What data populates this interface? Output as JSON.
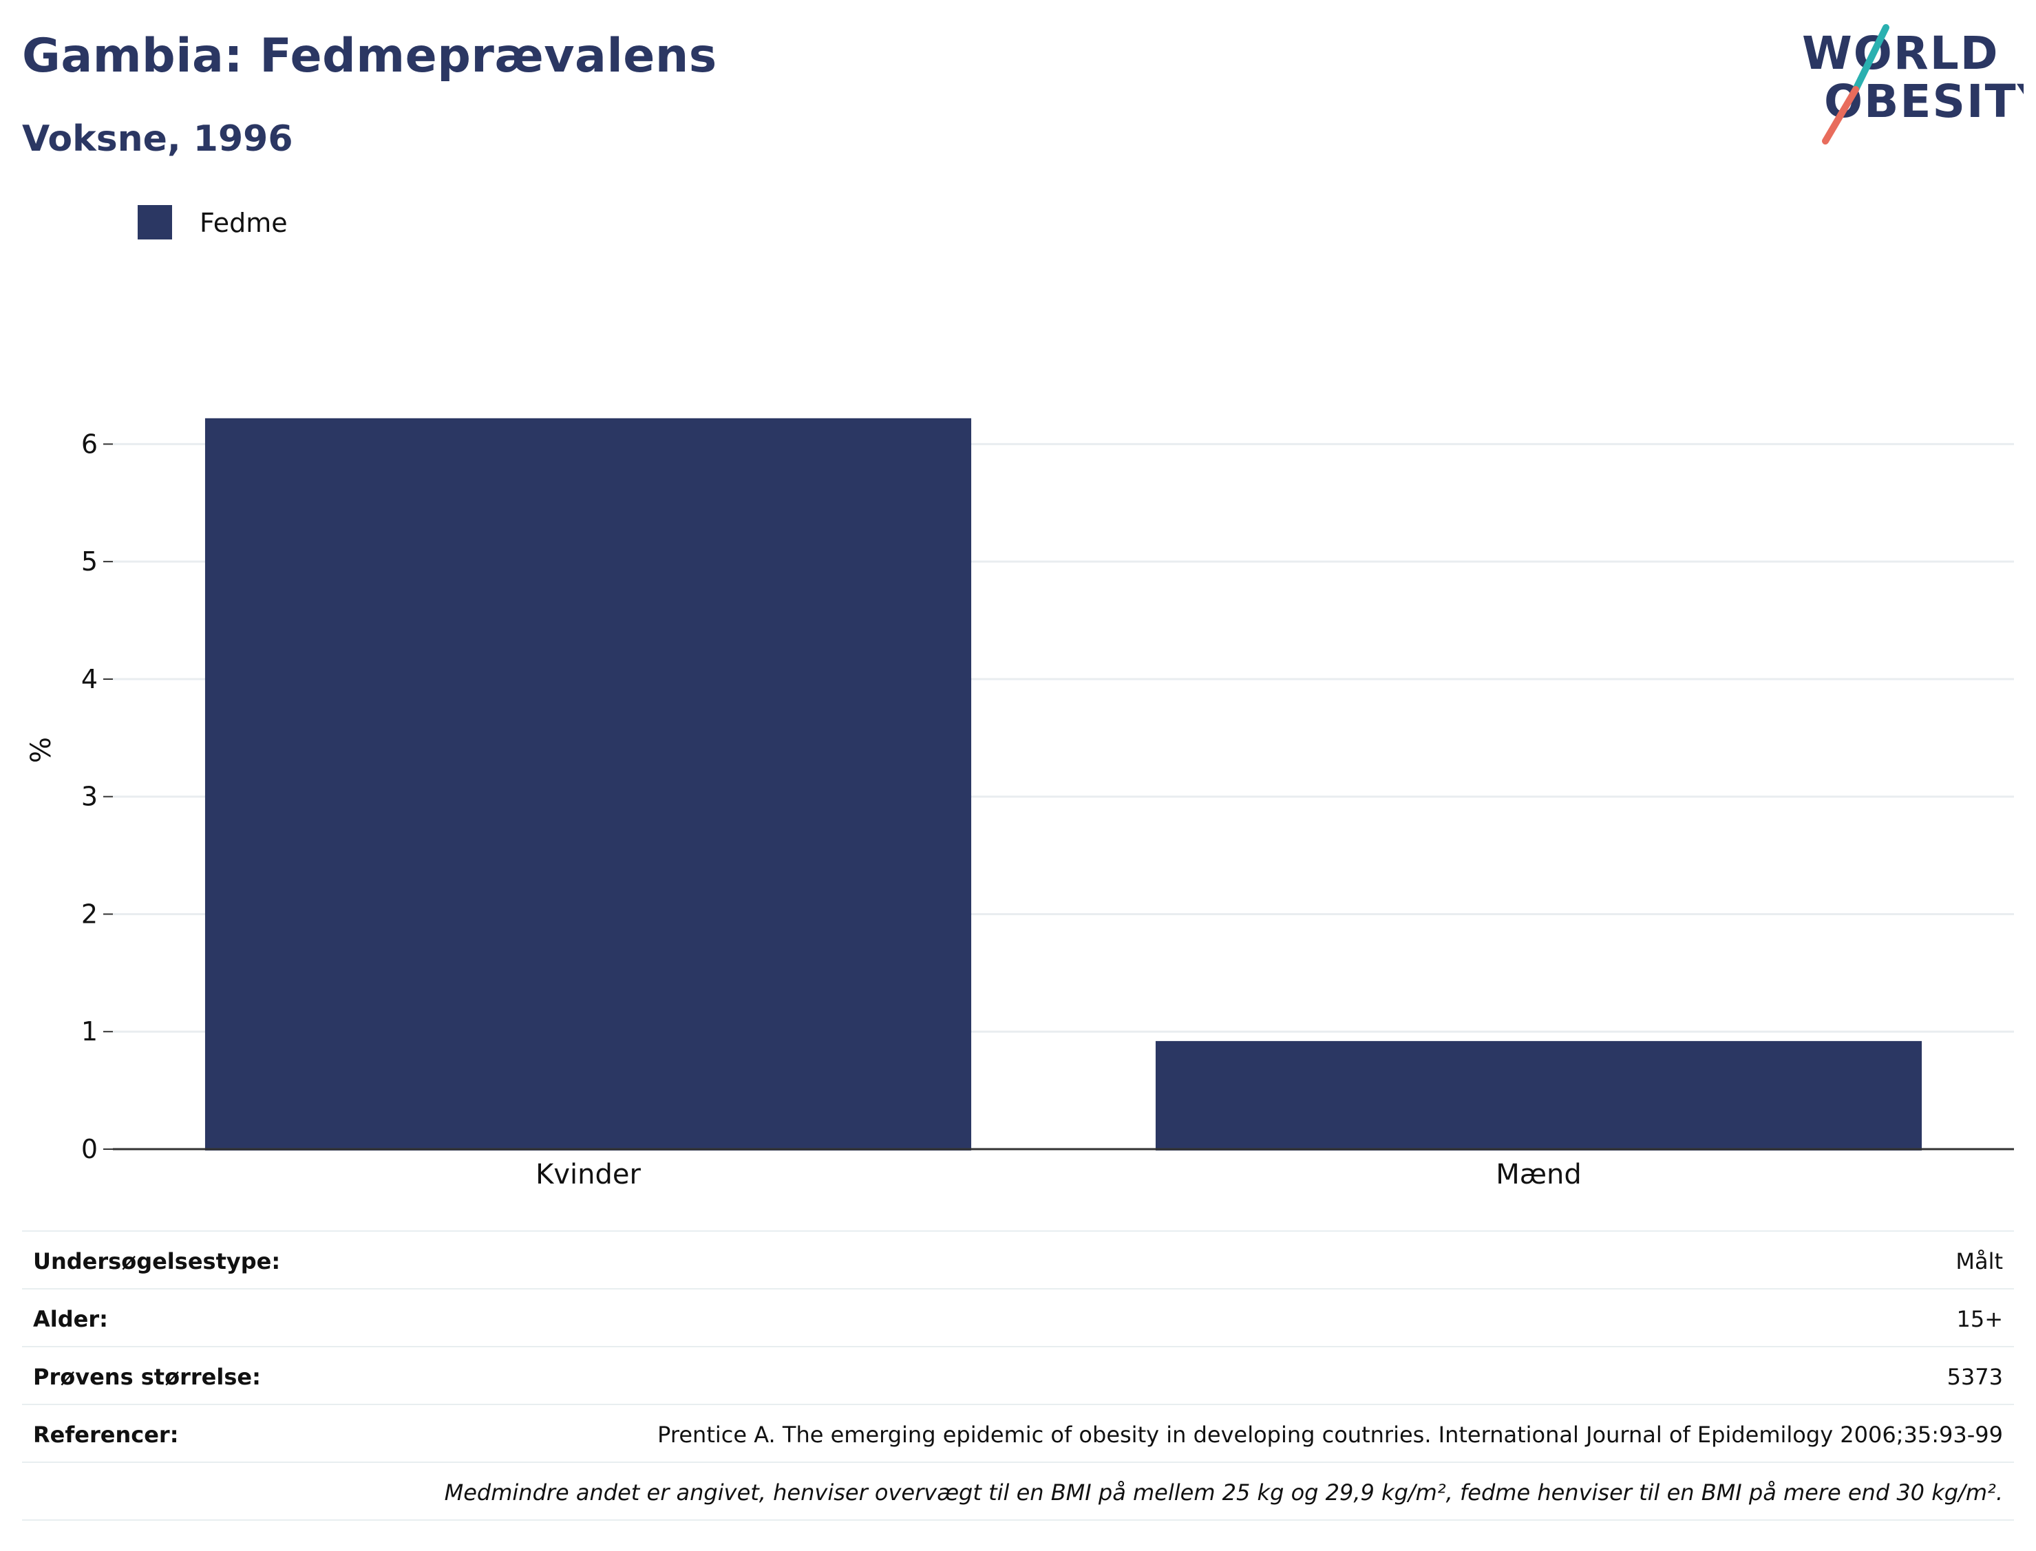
{
  "header": {
    "title": "Gambia: Fedmeprævalens",
    "subtitle": "Voksne, 1996"
  },
  "logo": {
    "line1": "WORLD",
    "line2": "OBESITY"
  },
  "legend": {
    "label": "Fedme",
    "color": "#2b3763"
  },
  "colors": {
    "bar": "#2b3763",
    "grid": "#e9edf0",
    "axis": "#333333",
    "brand_dark": "#2b3763",
    "logo_teal": "#2ab0b0",
    "logo_coral": "#e86c5c"
  },
  "chart_data": {
    "type": "bar",
    "categories": [
      "Kvinder",
      "Mænd"
    ],
    "series": [
      {
        "name": "Fedme",
        "values": [
          6.22,
          0.92
        ]
      }
    ],
    "xlabel": "",
    "ylabel": "%",
    "ylim": [
      0,
      6.5
    ],
    "yticks": [
      0,
      1,
      2,
      3,
      4,
      5,
      6
    ],
    "grid": true,
    "legend_position": "top-left"
  },
  "info": {
    "rows": [
      {
        "key": "Undersøgelsestype:",
        "value": "Målt"
      },
      {
        "key": "Alder:",
        "value": "15+"
      },
      {
        "key": "Prøvens størrelse:",
        "value": "5373"
      },
      {
        "key": "Referencer:",
        "value": "Prentice A. The emerging epidemic of obesity in developing coutnries. International Journal of Epidemilogy 2006;35:93-99"
      }
    ],
    "note": "Medmindre andet er angivet, henviser overvægt til en BMI på mellem 25 kg og 29,9 kg/m², fedme henviser til en BMI på mere end 30 kg/m²."
  }
}
